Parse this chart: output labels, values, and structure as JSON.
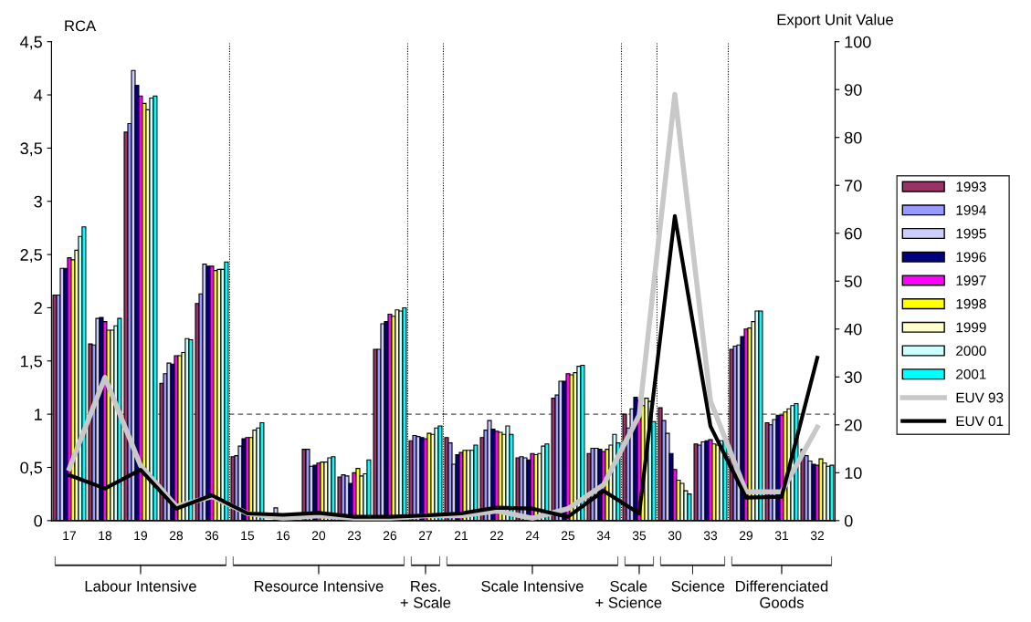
{
  "chart_data": {
    "type": "bar",
    "categories": [
      "17",
      "18",
      "19",
      "28",
      "36",
      "15",
      "16",
      "20",
      "23",
      "26",
      "27",
      "21",
      "22",
      "24",
      "25",
      "34",
      "35",
      "30",
      "33",
      "29",
      "31",
      "32"
    ],
    "ylabel": "RCA",
    "y2label": "Export Unit Value",
    "ylim": [
      0,
      4.5
    ],
    "yticks": [
      0,
      {
        "value": 0.5,
        "label": "0,5"
      },
      1,
      {
        "value": 1.5,
        "label": "1,5"
      },
      2,
      {
        "value": 2.5,
        "label": "2,5"
      },
      3,
      {
        "value": 3.5,
        "label": "3,5"
      },
      4,
      {
        "value": 4.5,
        "label": "4,5"
      }
    ],
    "y2lim": [
      0,
      100
    ],
    "y2ticks": [
      0,
      10,
      20,
      30,
      40,
      50,
      60,
      70,
      80,
      90,
      100
    ],
    "series": [
      {
        "name": "1993",
        "color": "#993366",
        "values": [
          2.12,
          1.66,
          3.65,
          1.29,
          2.04,
          0.6,
          null,
          0.67,
          0.41,
          1.61,
          0.75,
          0.78,
          0.78,
          0.59,
          1.15,
          0.63,
          1.0,
          1.06,
          0.72,
          1.61,
          0.92,
          0.67
        ]
      },
      {
        "name": "1994",
        "color": "#9999ff",
        "values": [
          2.12,
          1.65,
          3.73,
          1.38,
          2.13,
          0.61,
          null,
          0.67,
          0.43,
          1.61,
          0.8,
          0.73,
          0.85,
          0.6,
          1.18,
          0.68,
          0.87,
          0.94,
          0.71,
          1.64,
          0.9,
          0.61
        ]
      },
      {
        "name": "1995",
        "color": "#ccccff",
        "values": [
          2.37,
          1.9,
          4.23,
          1.48,
          2.41,
          0.7,
          0.12,
          0.51,
          0.42,
          1.85,
          0.79,
          0.53,
          0.94,
          0.59,
          1.31,
          0.68,
          1.05,
          0.82,
          0.74,
          1.65,
          0.95,
          0.56
        ]
      },
      {
        "name": "1996",
        "color": "#000080",
        "values": [
          2.37,
          1.91,
          4.09,
          1.47,
          2.39,
          0.77,
          null,
          0.52,
          0.35,
          1.87,
          0.78,
          0.62,
          0.86,
          0.57,
          1.31,
          0.67,
          1.16,
          0.63,
          0.75,
          1.73,
          0.99,
          0.53
        ]
      },
      {
        "name": "1997",
        "color": "#ff00ff",
        "values": [
          2.47,
          1.87,
          3.99,
          1.55,
          2.39,
          0.78,
          null,
          0.54,
          0.45,
          1.94,
          0.77,
          0.64,
          0.84,
          0.63,
          1.38,
          0.65,
          1.13,
          0.48,
          0.76,
          1.8,
          0.99,
          0.52
        ]
      },
      {
        "name": "1998",
        "color": "#ffff00",
        "values": [
          2.45,
          1.79,
          3.92,
          1.55,
          2.35,
          0.78,
          null,
          0.55,
          0.49,
          1.92,
          0.82,
          0.66,
          0.83,
          0.62,
          1.37,
          0.67,
          1.08,
          0.38,
          0.72,
          1.81,
          1.02,
          0.58
        ]
      },
      {
        "name": "1999",
        "color": "#ffffcc",
        "values": [
          2.54,
          1.79,
          3.86,
          1.58,
          2.36,
          0.85,
          null,
          0.55,
          0.42,
          1.98,
          0.81,
          0.66,
          0.81,
          0.63,
          1.39,
          0.71,
          1.15,
          0.35,
          0.71,
          1.87,
          1.05,
          0.54
        ]
      },
      {
        "name": "2000",
        "color": "#ccffff",
        "values": [
          2.67,
          1.83,
          3.97,
          1.71,
          2.36,
          0.87,
          null,
          0.59,
          0.44,
          1.97,
          0.87,
          0.66,
          0.89,
          0.7,
          1.45,
          0.81,
          1.12,
          0.28,
          0.75,
          1.97,
          1.08,
          0.51
        ]
      },
      {
        "name": "2001",
        "color": "#00ffff",
        "values": [
          2.76,
          1.9,
          3.99,
          1.7,
          2.43,
          0.92,
          null,
          0.6,
          0.57,
          2.0,
          0.89,
          0.71,
          0.81,
          0.72,
          1.46,
          0.73,
          0.93,
          0.25,
          0.75,
          1.97,
          1.1,
          0.52
        ]
      },
      {
        "name": "EUV 93",
        "type": "line",
        "axis": "y2",
        "color": "#c8c8c8",
        "values": [
          10.9,
          29.9,
          11.5,
          3,
          5,
          1.5,
          0.5,
          1,
          0.5,
          0.5,
          1,
          1,
          2,
          0.5,
          2.5,
          7.5,
          22,
          89,
          25,
          6,
          6,
          19.5
        ]
      },
      {
        "name": "EUV 01",
        "type": "line",
        "axis": "y2",
        "color": "#000000",
        "values": [
          9.5,
          6.7,
          10.6,
          2.5,
          5.3,
          1.5,
          1.2,
          1.6,
          0.8,
          0.8,
          1.1,
          1.5,
          2.7,
          2.5,
          0.8,
          6.2,
          1.5,
          63.6,
          19.7,
          4.8,
          5,
          34
        ]
      }
    ],
    "ref_lines": [
      {
        "axis": "y",
        "value": 1,
        "color": "#555555",
        "line_style": "dashed"
      }
    ],
    "annotations": [
      "Labour Intensive",
      "Resource Intensive",
      "Res.\n+ Scale",
      "Scale Intensive",
      "Scale\n+ Science",
      "Science",
      "Differenciated\nGoods"
    ],
    "legend": "right",
    "grid": false
  }
}
